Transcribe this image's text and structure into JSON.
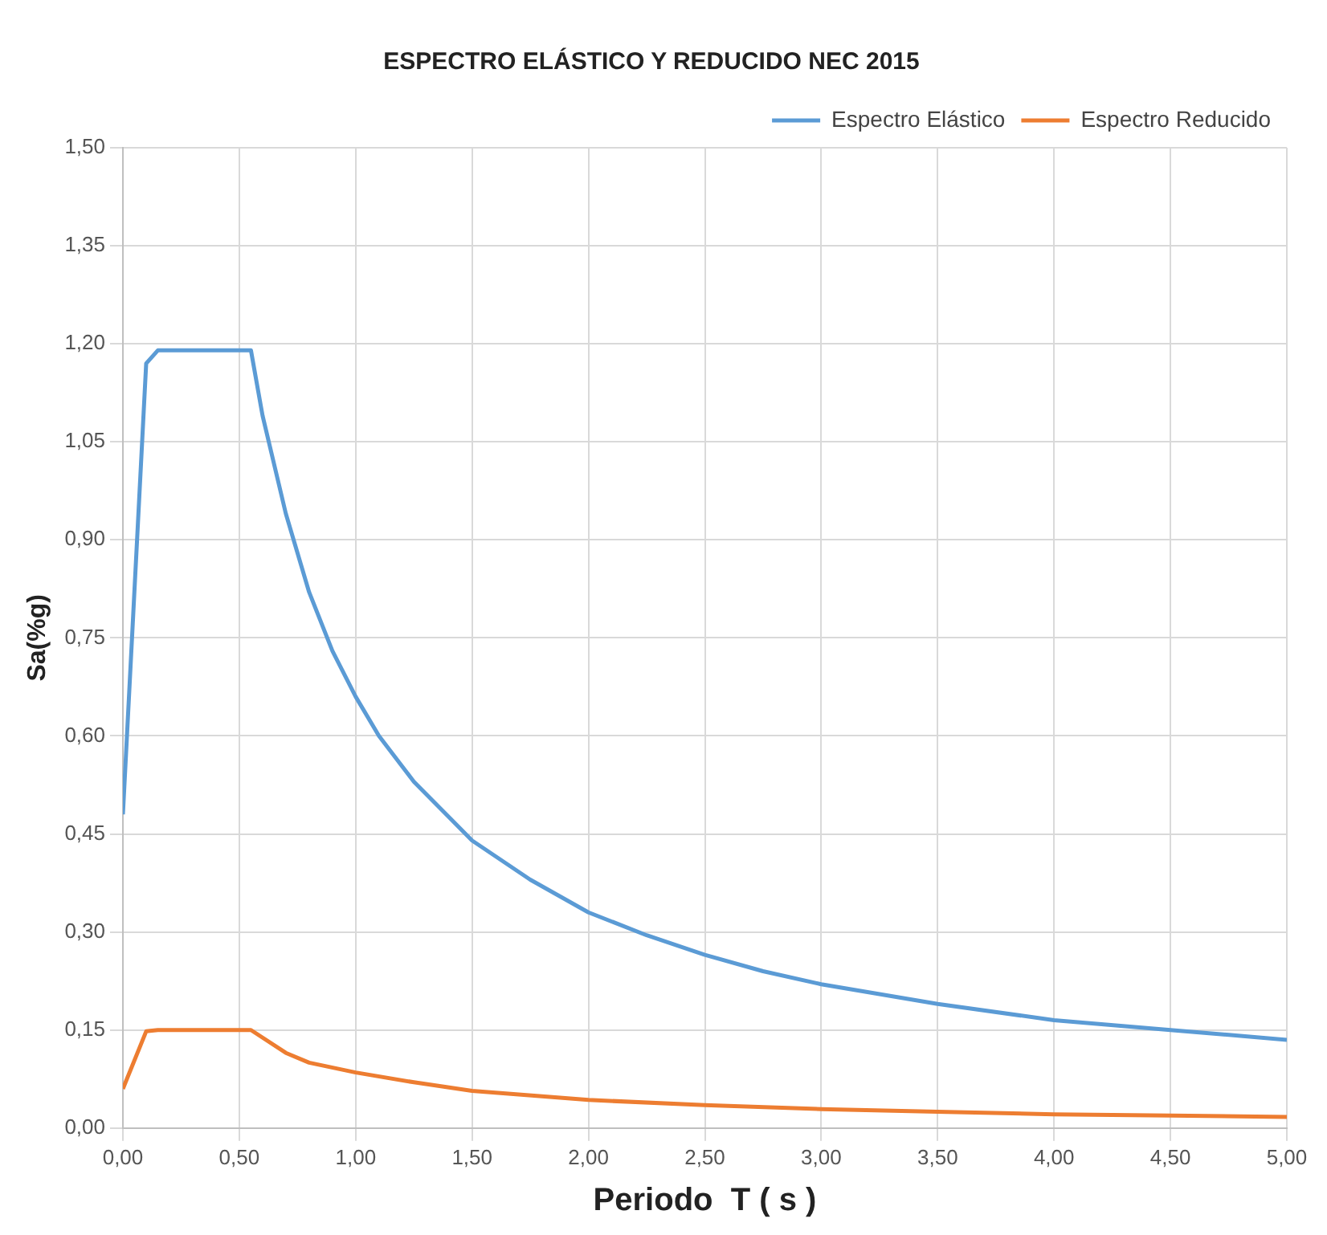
{
  "chart_data": {
    "type": "line",
    "title": "ESPECTRO ELÁSTICO Y REDUCIDO NEC 2015",
    "xlabel": "Periodo  T ( s )",
    "ylabel": "Sa(%g)",
    "series": [
      {
        "name": "Espectro Elástico",
        "color": "#5b9bd5",
        "x": [
          0,
          0.1,
          0.15,
          0.55,
          0.6,
          0.7,
          0.8,
          0.9,
          1.0,
          1.1,
          1.25,
          1.5,
          1.75,
          2.0,
          2.25,
          2.5,
          2.75,
          3.0,
          3.5,
          4.0,
          4.5,
          5.0
        ],
        "values": [
          0.48,
          1.17,
          1.19,
          1.19,
          1.09,
          0.94,
          0.82,
          0.73,
          0.66,
          0.6,
          0.53,
          0.44,
          0.38,
          0.33,
          0.295,
          0.265,
          0.24,
          0.22,
          0.19,
          0.165,
          0.15,
          0.135
        ]
      },
      {
        "name": "Espectro Reducido",
        "color": "#ed7d31",
        "x": [
          0,
          0.1,
          0.15,
          0.55,
          0.7,
          0.8,
          1.0,
          1.25,
          1.5,
          2.0,
          2.5,
          3.0,
          3.5,
          4.0,
          4.5,
          5.0
        ],
        "values": [
          0.06,
          0.148,
          0.15,
          0.15,
          0.115,
          0.1,
          0.085,
          0.07,
          0.057,
          0.043,
          0.035,
          0.029,
          0.025,
          0.021,
          0.019,
          0.017
        ]
      }
    ],
    "xlim": [
      0,
      5
    ],
    "xticks": [
      {
        "value": 0,
        "label": "0,00"
      },
      {
        "value": 0.5,
        "label": "0,50"
      },
      {
        "value": 1,
        "label": "1,00"
      },
      {
        "value": 1.5,
        "label": "1,50"
      },
      {
        "value": 2,
        "label": "2,00"
      },
      {
        "value": 2.5,
        "label": "2,50"
      },
      {
        "value": 3,
        "label": "3,00"
      },
      {
        "value": 3.5,
        "label": "3,50"
      },
      {
        "value": 4,
        "label": "4,00"
      },
      {
        "value": 4.5,
        "label": "4,50"
      },
      {
        "value": 5,
        "label": "5,00"
      }
    ],
    "ylim": [
      0,
      1.5
    ],
    "yticks": [
      {
        "value": 0,
        "label": "0,00"
      },
      {
        "value": 0.15,
        "label": "0,15"
      },
      {
        "value": 0.3,
        "label": "0,30"
      },
      {
        "value": 0.45,
        "label": "0,45"
      },
      {
        "value": 0.6,
        "label": "0,60"
      },
      {
        "value": 0.75,
        "label": "0,75"
      },
      {
        "value": 0.9,
        "label": "0,90"
      },
      {
        "value": 1.05,
        "label": "1,05"
      },
      {
        "value": 1.2,
        "label": "1,20"
      },
      {
        "value": 1.35,
        "label": "1,35"
      },
      {
        "value": 1.5,
        "label": "1,50"
      }
    ],
    "grid": true,
    "legend": "top right",
    "marker": "none",
    "line_style": "solid"
  }
}
